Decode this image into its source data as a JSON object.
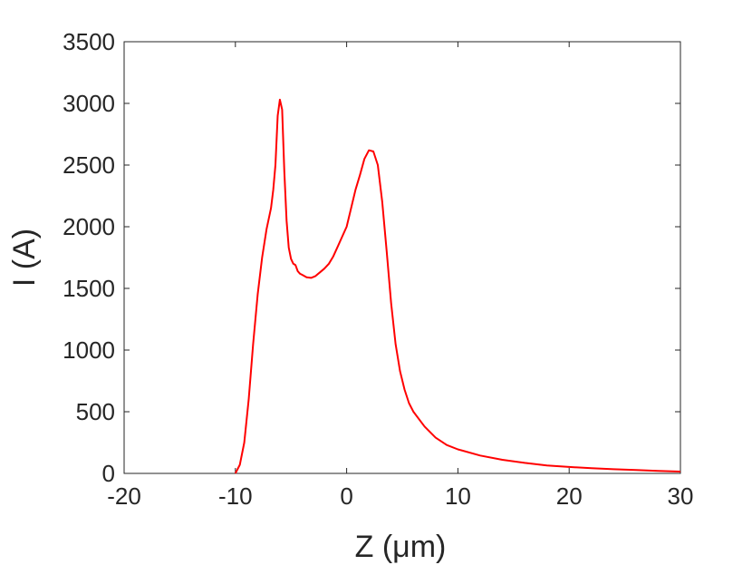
{
  "chart_data": {
    "type": "line",
    "title": "",
    "xlabel": "Z (μm)",
    "ylabel": "I (A)",
    "xlim": [
      -20,
      30
    ],
    "ylim": [
      0,
      3500
    ],
    "xticks": [
      -20,
      -10,
      0,
      10,
      20,
      30
    ],
    "yticks": [
      0,
      500,
      1000,
      1500,
      2000,
      2500,
      3000,
      3500
    ],
    "grid": false,
    "series": [
      {
        "color": "#ff0000",
        "x": [
          -10.0,
          -9.6,
          -9.2,
          -8.8,
          -8.4,
          -8.0,
          -7.6,
          -7.2,
          -6.8,
          -6.6,
          -6.4,
          -6.2,
          -6.0,
          -5.8,
          -5.6,
          -5.4,
          -5.2,
          -5.0,
          -4.8,
          -4.6,
          -4.4,
          -4.2,
          -4.0,
          -3.6,
          -3.2,
          -2.8,
          -2.4,
          -2.0,
          -1.6,
          -1.2,
          -0.8,
          -0.4,
          0.0,
          0.4,
          0.8,
          1.2,
          1.6,
          2.0,
          2.4,
          2.8,
          3.2,
          3.6,
          4.0,
          4.4,
          4.8,
          5.2,
          5.6,
          6.0,
          7.0,
          8.0,
          9.0,
          10.0,
          12.0,
          14.0,
          16.0,
          18.0,
          20.0,
          22.0,
          24.0,
          26.0,
          28.0,
          30.0
        ],
        "values": [
          0,
          70,
          250,
          600,
          1050,
          1450,
          1750,
          1980,
          2150,
          2300,
          2500,
          2900,
          3030,
          2950,
          2450,
          2050,
          1830,
          1740,
          1700,
          1690,
          1640,
          1620,
          1610,
          1590,
          1585,
          1600,
          1630,
          1660,
          1700,
          1760,
          1840,
          1920,
          2000,
          2150,
          2300,
          2420,
          2550,
          2620,
          2610,
          2500,
          2200,
          1800,
          1380,
          1050,
          830,
          680,
          570,
          500,
          380,
          290,
          230,
          195,
          145,
          110,
          85,
          65,
          52,
          42,
          34,
          27,
          20,
          15
        ]
      }
    ]
  }
}
